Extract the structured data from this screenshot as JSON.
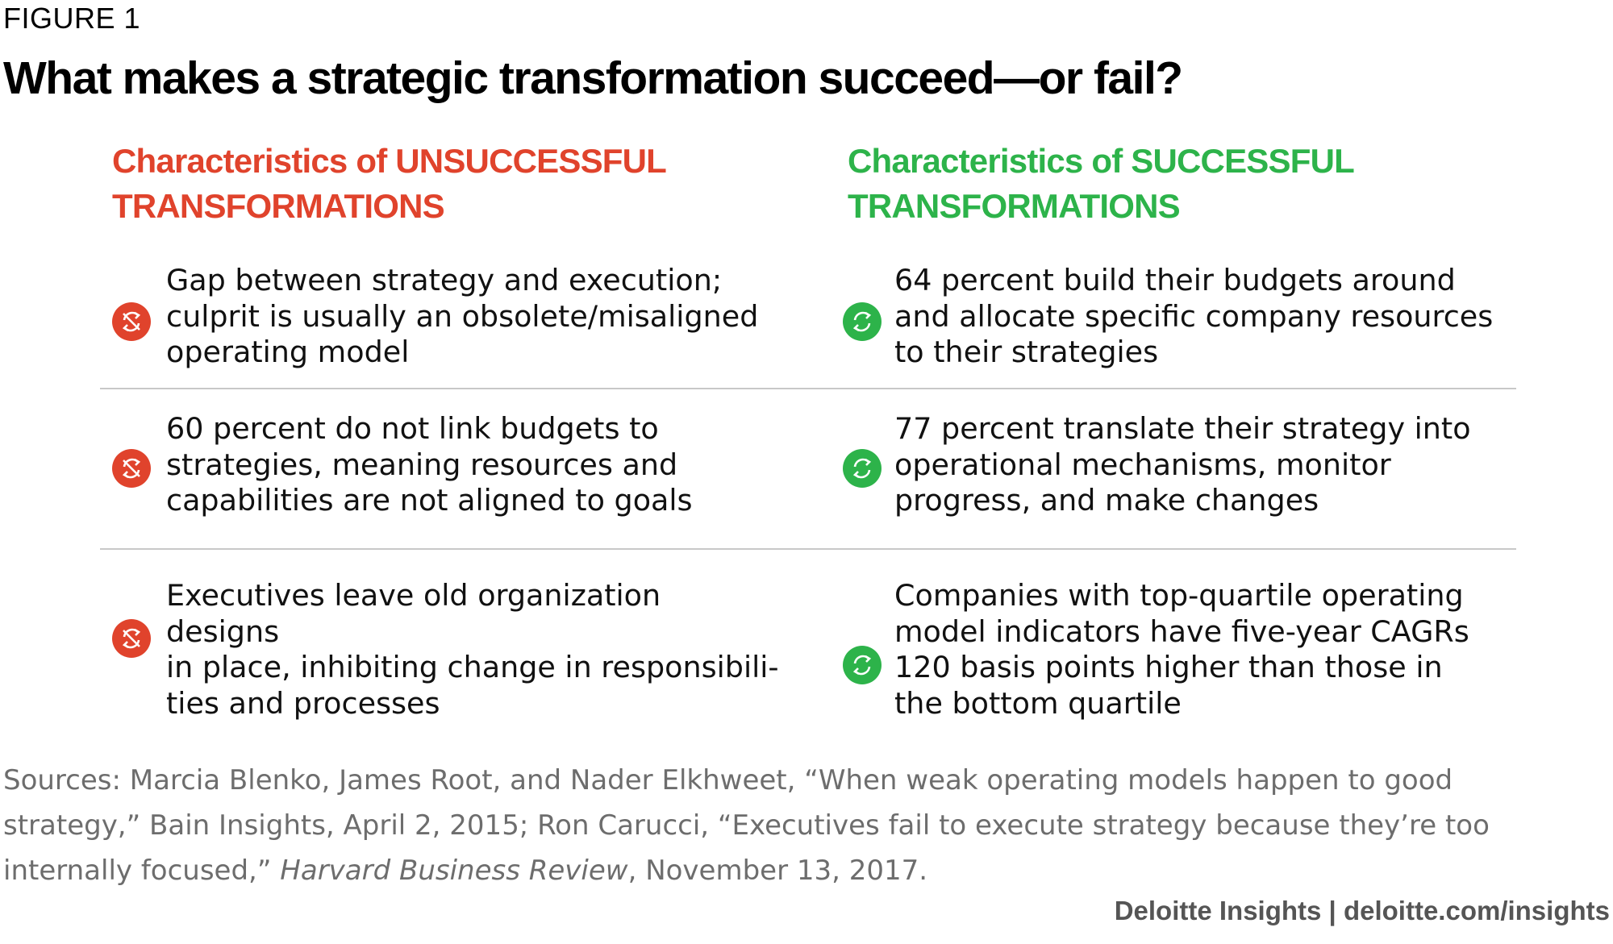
{
  "figure_label": "FIGURE 1",
  "title": "What makes a strategic transformation succeed—or fail?",
  "columns": {
    "unsuccessful": {
      "heading_line1": "Characteristics of UNSUCCESSFUL",
      "heading_line2": "TRANSFORMATIONS",
      "color": "#e0432c",
      "icon": "transform-failed-icon",
      "items": [
        "Gap between strategy and execution;\nculprit is usually an obsolete/misaligned\noperating model",
        "60 percent do not link budgets to\nstrategies, meaning resources and\ncapabilities are not aligned to goals",
        "Executives leave old organization designs\nin place, inhibiting change in responsibili-\nties and processes"
      ]
    },
    "successful": {
      "heading_line1": "Characteristics of SUCCESSFUL",
      "heading_line2": "TRANSFORMATIONS",
      "color": "#2db34a",
      "icon": "transform-success-icon",
      "items": [
        "64 percent build their budgets around\nand allocate specific company resources\nto their strategies",
        "77 percent translate their strategy into\noperational mechanisms, monitor\nprogress, and make changes",
        "Companies with top-quartile operating\nmodel indicators have five-year CAGRs\n120 basis points higher than those in\nthe bottom quartile"
      ]
    }
  },
  "sources": {
    "part1": "Sources: Marcia Blenko, James Root, and Nader Elkhweet, “When weak operating models happen to good strategy,” Bain Insights, April 2, 2015; Ron Carucci, “Executives fail to execute strategy because they’re too internally focused,” ",
    "publication": "Harvard Business Review",
    "part2": ", November 13, 2017."
  },
  "footer": "Deloitte Insights | deloitte.com/insights"
}
